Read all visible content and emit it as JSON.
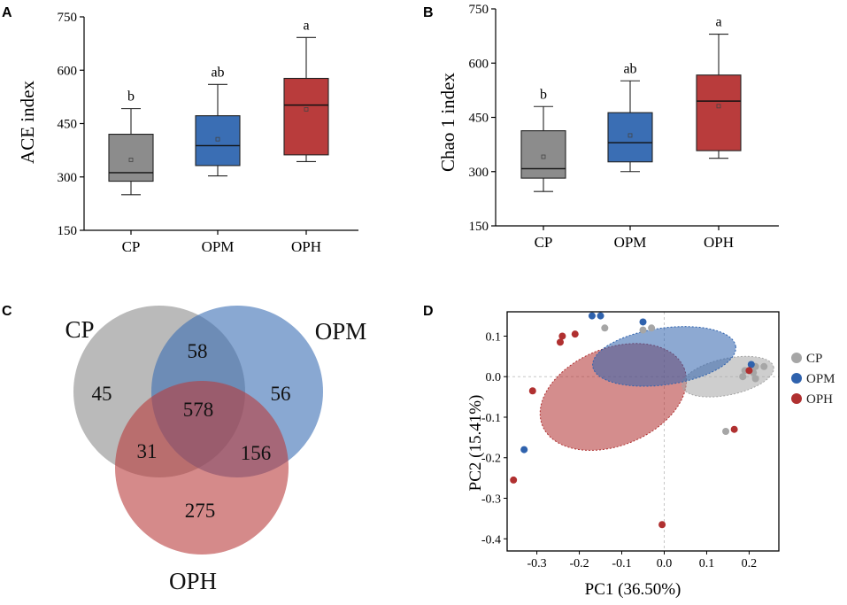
{
  "chart_data": [
    {
      "panel": "A",
      "type": "box",
      "ylabel": "ACE index",
      "ylim": [
        150,
        750
      ],
      "yticks": [
        150,
        300,
        450,
        600,
        750
      ],
      "categories": [
        "CP",
        "OPM",
        "OPH"
      ],
      "colors": [
        "#8c8c8c",
        "#3a6eb4",
        "#b93c3c"
      ],
      "boxes": [
        {
          "min": 250,
          "q1": 288,
          "median": 312,
          "q3": 420,
          "max": 492,
          "mean": 348,
          "letter": "b"
        },
        {
          "min": 303,
          "q1": 332,
          "median": 388,
          "q3": 472,
          "max": 560,
          "mean": 406,
          "letter": "ab"
        },
        {
          "min": 343,
          "q1": 362,
          "median": 502,
          "q3": 577,
          "max": 692,
          "mean": 490,
          "letter": "a"
        }
      ]
    },
    {
      "panel": "B",
      "type": "box",
      "ylabel": "Chao 1 index",
      "ylim": [
        150,
        750
      ],
      "yticks": [
        150,
        300,
        450,
        600,
        750
      ],
      "categories": [
        "CP",
        "OPM",
        "OPH"
      ],
      "colors": [
        "#8c8c8c",
        "#3a6eb4",
        "#b93c3c"
      ],
      "boxes": [
        {
          "min": 245,
          "q1": 282,
          "median": 308,
          "q3": 413,
          "max": 480,
          "mean": 341,
          "letter": "b"
        },
        {
          "min": 300,
          "q1": 327,
          "median": 380,
          "q3": 463,
          "max": 551,
          "mean": 400,
          "letter": "ab"
        },
        {
          "min": 337,
          "q1": 358,
          "median": 495,
          "q3": 567,
          "max": 680,
          "mean": 481,
          "letter": "a"
        }
      ]
    },
    {
      "panel": "C",
      "type": "venn",
      "sets": [
        "CP",
        "OPM",
        "OPH"
      ],
      "colors": [
        "#8c8c8c",
        "#3a6eb4",
        "#b93c3c"
      ],
      "regions": {
        "CP_only": 45,
        "OPM_only": 56,
        "OPH_only": 275,
        "CP_OPM": 58,
        "CP_OPH": 31,
        "OPM_OPH": 156,
        "all": 578
      }
    },
    {
      "panel": "D",
      "type": "scatter",
      "xlabel": "PC1 (36.50%)",
      "ylabel": "PC2 (15.41%)",
      "xlim": [
        -0.37,
        0.27
      ],
      "ylim": [
        -0.43,
        0.16
      ],
      "xticks": [
        -0.3,
        -0.2,
        -0.1,
        0.0,
        0.1,
        0.2
      ],
      "yticks": [
        -0.4,
        -0.3,
        -0.2,
        -0.1,
        0.0,
        0.1
      ],
      "legend_position": "right",
      "series": [
        {
          "name": "CP",
          "color": "#a6a6a6",
          "points": [
            [
              -0.14,
              0.12
            ],
            [
              -0.05,
              0.115
            ],
            [
              -0.03,
              0.12
            ],
            [
              0.19,
              0.015
            ],
            [
              0.21,
              0.01
            ],
            [
              0.215,
              0.025
            ],
            [
              0.235,
              0.025
            ],
            [
              0.185,
              0.0
            ],
            [
              0.215,
              -0.005
            ],
            [
              0.145,
              -0.135
            ]
          ],
          "ellipse": {
            "cx": 0.15,
            "cy": 0.0,
            "rx": 0.11,
            "ry": 0.045,
            "angle_deg": -12
          }
        },
        {
          "name": "OPM",
          "color": "#2f62ad",
          "points": [
            [
              -0.17,
              0.15
            ],
            [
              -0.15,
              0.15
            ],
            [
              -0.05,
              0.135
            ],
            [
              0.205,
              0.03
            ],
            [
              -0.33,
              -0.18
            ]
          ],
          "ellipse": {
            "cx": 0.0,
            "cy": 0.05,
            "rx": 0.17,
            "ry": 0.07,
            "angle_deg": -8
          }
        },
        {
          "name": "OPH",
          "color": "#b03030",
          "points": [
            [
              -0.24,
              0.1
            ],
            [
              -0.245,
              0.085
            ],
            [
              -0.21,
              0.105
            ],
            [
              -0.31,
              -0.035
            ],
            [
              0.2,
              0.015
            ],
            [
              0.165,
              -0.13
            ],
            [
              -0.005,
              -0.365
            ],
            [
              -0.355,
              -0.255
            ]
          ],
          "ellipse": {
            "cx": -0.12,
            "cy": -0.05,
            "rx": 0.18,
            "ry": 0.12,
            "angle_deg": -22
          }
        }
      ]
    }
  ]
}
